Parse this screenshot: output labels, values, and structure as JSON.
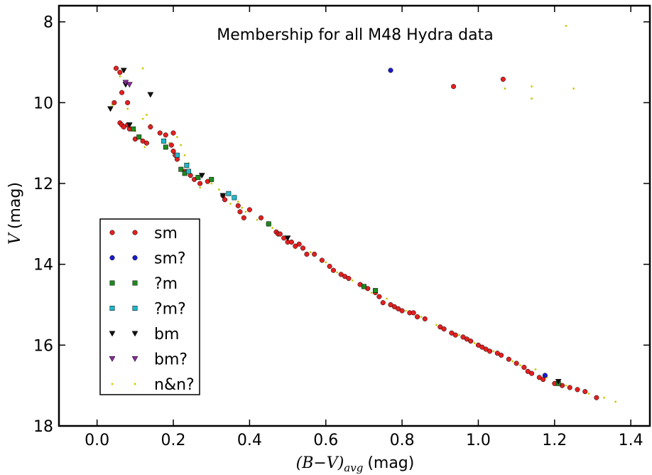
{
  "chart_data": {
    "type": "scatter",
    "title": "Membership for all M48 Hydra data",
    "xlabel_math": "(B−V)",
    "xlabel_sub": "avg",
    "xlabel_unit": "(mag)",
    "ylabel_math": "V",
    "ylabel_unit": "(mag)",
    "xlim": [
      -0.1,
      1.45
    ],
    "ylim": [
      18,
      7.6
    ],
    "y_inverted": true,
    "grid": false,
    "legend_position": "lower-left",
    "xticks": [
      0.0,
      0.2,
      0.4,
      0.6,
      0.8,
      1.0,
      1.2,
      1.4
    ],
    "xtick_labels": [
      "0.0",
      "0.2",
      "0.4",
      "0.6",
      "0.8",
      "1.0",
      "1.2",
      "1.4"
    ],
    "yticks": [
      8,
      10,
      12,
      14,
      16,
      18
    ],
    "ytick_labels": [
      "8",
      "10",
      "12",
      "14",
      "16",
      "18"
    ],
    "series": [
      {
        "name": "sm",
        "marker": "circle",
        "color": "#e32020",
        "points": [
          [
            0.05,
            9.15
          ],
          [
            0.06,
            9.25
          ],
          [
            0.065,
            9.75
          ],
          [
            0.08,
            10.0
          ],
          [
            0.045,
            10.0
          ],
          [
            0.06,
            10.5
          ],
          [
            0.065,
            10.55
          ],
          [
            0.07,
            10.6
          ],
          [
            0.08,
            10.55
          ],
          [
            0.085,
            10.65
          ],
          [
            0.1,
            10.9
          ],
          [
            0.12,
            10.95
          ],
          [
            0.13,
            11.0
          ],
          [
            0.14,
            10.6
          ],
          [
            0.165,
            10.75
          ],
          [
            0.18,
            10.8
          ],
          [
            0.195,
            11.05
          ],
          [
            0.2,
            10.75
          ],
          [
            0.2,
            11.2
          ],
          [
            0.205,
            11.3
          ],
          [
            0.21,
            11.4
          ],
          [
            0.23,
            11.7
          ],
          [
            0.245,
            11.8
          ],
          [
            0.255,
            11.9
          ],
          [
            0.27,
            12.0
          ],
          [
            0.29,
            11.95
          ],
          [
            0.33,
            12.3
          ],
          [
            0.335,
            12.4
          ],
          [
            0.37,
            12.55
          ],
          [
            0.375,
            12.7
          ],
          [
            0.385,
            12.85
          ],
          [
            0.4,
            12.65
          ],
          [
            0.43,
            12.85
          ],
          [
            0.45,
            13.0
          ],
          [
            0.47,
            13.2
          ],
          [
            0.475,
            13.25
          ],
          [
            0.48,
            13.25
          ],
          [
            0.49,
            13.35
          ],
          [
            0.5,
            13.45
          ],
          [
            0.51,
            13.45
          ],
          [
            0.52,
            13.55
          ],
          [
            0.53,
            13.5
          ],
          [
            0.54,
            13.6
          ],
          [
            0.55,
            13.75
          ],
          [
            0.57,
            13.75
          ],
          [
            0.59,
            13.9
          ],
          [
            0.61,
            14.05
          ],
          [
            0.62,
            14.15
          ],
          [
            0.64,
            14.25
          ],
          [
            0.65,
            14.3
          ],
          [
            0.66,
            14.35
          ],
          [
            0.69,
            14.5
          ],
          [
            0.7,
            14.55
          ],
          [
            0.71,
            14.6
          ],
          [
            0.73,
            14.7
          ],
          [
            0.74,
            14.8
          ],
          [
            0.75,
            14.95
          ],
          [
            0.77,
            15.0
          ],
          [
            0.78,
            15.05
          ],
          [
            0.79,
            15.1
          ],
          [
            0.8,
            15.15
          ],
          [
            0.82,
            15.2
          ],
          [
            0.83,
            15.2
          ],
          [
            0.84,
            15.3
          ],
          [
            0.86,
            15.35
          ],
          [
            0.9,
            15.55
          ],
          [
            0.91,
            15.6
          ],
          [
            0.93,
            15.7
          ],
          [
            0.94,
            15.75
          ],
          [
            0.96,
            15.8
          ],
          [
            0.97,
            15.85
          ],
          [
            0.98,
            15.9
          ],
          [
            1.0,
            16.0
          ],
          [
            1.01,
            16.05
          ],
          [
            1.02,
            16.1
          ],
          [
            1.03,
            16.15
          ],
          [
            1.05,
            16.2
          ],
          [
            1.06,
            16.25
          ],
          [
            1.08,
            16.35
          ],
          [
            1.1,
            16.45
          ],
          [
            1.12,
            16.55
          ],
          [
            1.13,
            16.65
          ],
          [
            1.14,
            16.7
          ],
          [
            1.16,
            16.8
          ],
          [
            1.17,
            16.85
          ],
          [
            1.2,
            16.95
          ],
          [
            1.22,
            17.0
          ],
          [
            1.24,
            17.05
          ],
          [
            1.26,
            17.1
          ],
          [
            1.28,
            17.15
          ],
          [
            1.31,
            17.3
          ],
          [
            0.935,
            9.6
          ],
          [
            1.065,
            9.42
          ]
        ]
      },
      {
        "name": "sm?",
        "marker": "circle",
        "color": "#1a1acc",
        "points": [
          [
            0.77,
            9.2
          ],
          [
            1.175,
            16.75
          ]
        ]
      },
      {
        "name": "?m",
        "marker": "square",
        "color": "#1e8a1e",
        "points": [
          [
            0.095,
            10.65
          ],
          [
            0.11,
            10.85
          ],
          [
            0.18,
            11.1
          ],
          [
            0.22,
            11.65
          ],
          [
            0.23,
            11.75
          ],
          [
            0.265,
            11.85
          ],
          [
            0.3,
            11.9
          ],
          [
            0.45,
            13.0
          ],
          [
            0.7,
            14.55
          ],
          [
            0.73,
            14.65
          ],
          [
            1.21,
            16.95
          ]
        ]
      },
      {
        "name": "?m?",
        "marker": "square",
        "color": "#20b8c8",
        "points": [
          [
            0.175,
            10.95
          ],
          [
            0.21,
            11.3
          ],
          [
            0.235,
            11.55
          ],
          [
            0.24,
            11.7
          ],
          [
            0.345,
            12.25
          ],
          [
            0.36,
            12.35
          ]
        ]
      },
      {
        "name": "bm",
        "marker": "triangle-down",
        "color": "#111111",
        "points": [
          [
            0.035,
            10.15
          ],
          [
            0.07,
            9.2
          ],
          [
            0.075,
            9.55
          ],
          [
            0.085,
            10.55
          ],
          [
            0.14,
            9.8
          ],
          [
            0.275,
            11.8
          ],
          [
            0.33,
            12.3
          ],
          [
            0.5,
            13.35
          ],
          [
            1.21,
            16.9
          ]
        ]
      },
      {
        "name": "bm?",
        "marker": "triangle-down",
        "color": "#8a2b9a",
        "points": [
          [
            0.075,
            9.5
          ],
          [
            0.085,
            9.55
          ]
        ]
      },
      {
        "name": "n&n?",
        "marker": "dot",
        "color": "#c8c800",
        "points": [
          [
            0.06,
            9.35
          ],
          [
            0.12,
            9.15
          ],
          [
            0.04,
            10.05
          ],
          [
            0.08,
            10.15
          ],
          [
            0.1,
            10.7
          ],
          [
            0.12,
            10.4
          ],
          [
            0.125,
            11.1
          ],
          [
            0.13,
            10.3
          ],
          [
            0.14,
            10.55
          ],
          [
            0.19,
            11.0
          ],
          [
            0.21,
            10.85
          ],
          [
            0.22,
            11.05
          ],
          [
            0.23,
            11.3
          ],
          [
            0.24,
            11.5
          ],
          [
            0.26,
            11.9
          ],
          [
            0.27,
            12.1
          ],
          [
            0.3,
            12.0
          ],
          [
            0.32,
            12.15
          ],
          [
            0.34,
            12.4
          ],
          [
            0.35,
            12.5
          ],
          [
            0.37,
            12.45
          ],
          [
            0.38,
            12.6
          ],
          [
            0.39,
            12.7
          ],
          [
            0.42,
            12.9
          ],
          [
            0.46,
            13.1
          ],
          [
            0.52,
            13.6
          ],
          [
            0.56,
            13.7
          ],
          [
            0.6,
            13.95
          ],
          [
            0.63,
            14.2
          ],
          [
            0.67,
            14.4
          ],
          [
            0.72,
            14.7
          ],
          [
            0.76,
            14.85
          ],
          [
            0.81,
            15.15
          ],
          [
            0.85,
            15.3
          ],
          [
            0.89,
            15.5
          ],
          [
            0.95,
            15.75
          ],
          [
            0.99,
            15.95
          ],
          [
            1.04,
            16.15
          ],
          [
            1.09,
            16.4
          ],
          [
            1.11,
            16.5
          ],
          [
            1.15,
            16.6
          ],
          [
            1.18,
            16.8
          ],
          [
            1.23,
            17.0
          ],
          [
            1.29,
            17.2
          ],
          [
            1.33,
            17.3
          ],
          [
            1.36,
            17.4
          ],
          [
            1.07,
            9.65
          ],
          [
            1.14,
            9.6
          ],
          [
            1.14,
            9.9
          ],
          [
            1.23,
            8.1
          ],
          [
            1.25,
            9.65
          ]
        ]
      }
    ]
  }
}
